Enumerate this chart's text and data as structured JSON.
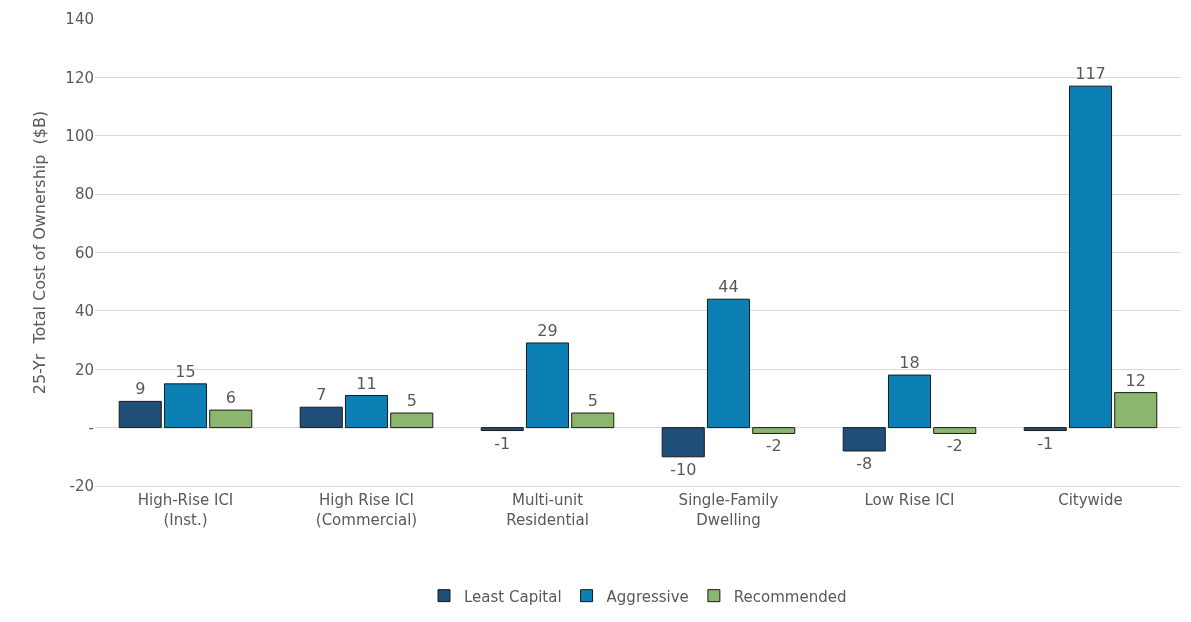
{
  "chart_data": {
    "type": "bar",
    "ylabel": "25-Yr  Total Cost of Ownership  ($B)",
    "categories": [
      "High-Rise ICI\n(Inst.)",
      "High Rise ICI\n(Commercial)",
      "Multi-unit\nResidential",
      "Single-Family\nDwelling",
      "Low Rise ICI",
      "Citywide"
    ],
    "series": [
      {
        "name": "Least Capital",
        "color": "#1f4e79",
        "values": [
          9,
          7,
          -1,
          -10,
          -8,
          -1
        ]
      },
      {
        "name": "Aggressive",
        "color": "#0c7fb5",
        "values": [
          15,
          11,
          29,
          44,
          18,
          117
        ]
      },
      {
        "name": "Recommended",
        "color": "#8cb66d",
        "values": [
          6,
          5,
          5,
          -2,
          -2,
          12
        ]
      }
    ],
    "ylim": [
      -20,
      140
    ],
    "yticks": [
      -20,
      {
        "value": 0,
        "label": "-"
      },
      20,
      40,
      60,
      80,
      100,
      120,
      140
    ],
    "grid": "y",
    "legend": "bottom",
    "data_labels": true
  }
}
